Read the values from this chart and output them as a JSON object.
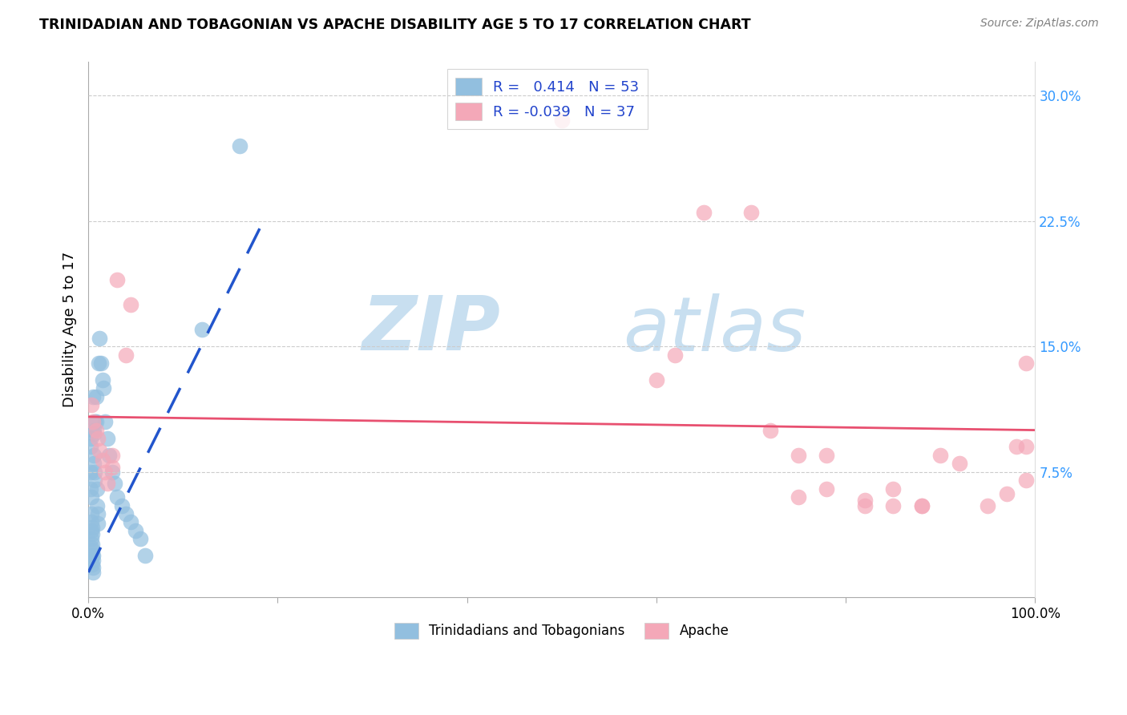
{
  "title": "TRINIDADIAN AND TOBAGONIAN VS APACHE DISABILITY AGE 5 TO 17 CORRELATION CHART",
  "source": "Source: ZipAtlas.com",
  "ylabel": "Disability Age 5 to 17",
  "xlim": [
    0.0,
    1.0
  ],
  "ylim": [
    0.0,
    0.32
  ],
  "ytick_positions": [
    0.075,
    0.15,
    0.225,
    0.3
  ],
  "ytick_labels": [
    "7.5%",
    "15.0%",
    "22.5%",
    "30.0%"
  ],
  "xtick_positions": [
    0.0,
    0.2,
    0.4,
    0.6,
    0.8,
    1.0
  ],
  "xtick_labels": [
    "0.0%",
    "",
    "",
    "",
    "",
    "100.0%"
  ],
  "blue_color": "#92bfdf",
  "pink_color": "#f4a8b8",
  "trendline_blue_color": "#2255cc",
  "trendline_pink_color": "#e85070",
  "grid_color": "#cccccc",
  "watermark_zip": "ZIP",
  "watermark_atlas": "atlas",
  "watermark_color_zip": "#c8dff0",
  "watermark_color_atlas": "#c8dff0",
  "legend1_label": "R =   0.414   N = 53",
  "legend2_label": "R = -0.039   N = 37",
  "legend_color": "#2244cc",
  "bottom_legend1": "Trinidadians and Tobagonians",
  "bottom_legend2": "Apache",
  "blue_x": [
    0.002,
    0.002,
    0.002,
    0.002,
    0.003,
    0.003,
    0.003,
    0.003,
    0.003,
    0.003,
    0.004,
    0.004,
    0.004,
    0.004,
    0.004,
    0.004,
    0.005,
    0.005,
    0.005,
    0.005,
    0.005,
    0.006,
    0.006,
    0.006,
    0.006,
    0.007,
    0.007,
    0.007,
    0.008,
    0.008,
    0.009,
    0.009,
    0.01,
    0.01,
    0.011,
    0.012,
    0.013,
    0.015,
    0.016,
    0.018,
    0.02,
    0.022,
    0.025,
    0.028,
    0.03,
    0.035,
    0.04,
    0.045,
    0.05,
    0.055,
    0.06,
    0.12,
    0.16
  ],
  "blue_y": [
    0.09,
    0.095,
    0.075,
    0.065,
    0.06,
    0.05,
    0.045,
    0.04,
    0.035,
    0.03,
    0.025,
    0.02,
    0.042,
    0.038,
    0.032,
    0.028,
    0.025,
    0.022,
    0.018,
    0.015,
    0.12,
    0.1,
    0.098,
    0.085,
    0.08,
    0.105,
    0.075,
    0.07,
    0.105,
    0.12,
    0.065,
    0.055,
    0.05,
    0.044,
    0.14,
    0.155,
    0.14,
    0.13,
    0.125,
    0.105,
    0.095,
    0.085,
    0.075,
    0.068,
    0.06,
    0.055,
    0.05,
    0.045,
    0.04,
    0.035,
    0.025,
    0.16,
    0.27
  ],
  "pink_x": [
    0.003,
    0.005,
    0.008,
    0.01,
    0.012,
    0.015,
    0.018,
    0.02,
    0.025,
    0.025,
    0.03,
    0.04,
    0.045,
    0.6,
    0.62,
    0.65,
    0.7,
    0.72,
    0.75,
    0.78,
    0.82,
    0.85,
    0.88,
    0.9,
    0.92,
    0.95,
    0.97,
    0.98,
    0.99,
    0.99,
    0.75,
    0.78,
    0.82,
    0.85,
    0.88,
    0.99,
    0.5
  ],
  "pink_y": [
    0.115,
    0.105,
    0.1,
    0.095,
    0.088,
    0.082,
    0.075,
    0.068,
    0.078,
    0.085,
    0.19,
    0.145,
    0.175,
    0.13,
    0.145,
    0.23,
    0.23,
    0.1,
    0.085,
    0.085,
    0.055,
    0.065,
    0.055,
    0.085,
    0.08,
    0.055,
    0.062,
    0.09,
    0.09,
    0.07,
    0.06,
    0.065,
    0.058,
    0.055,
    0.055,
    0.14,
    0.285
  ],
  "blue_trend_x": [
    0.0,
    0.185
  ],
  "blue_trend_y": [
    0.015,
    0.225
  ],
  "pink_trend_x": [
    0.0,
    1.0
  ],
  "pink_trend_y": [
    0.108,
    0.1
  ]
}
